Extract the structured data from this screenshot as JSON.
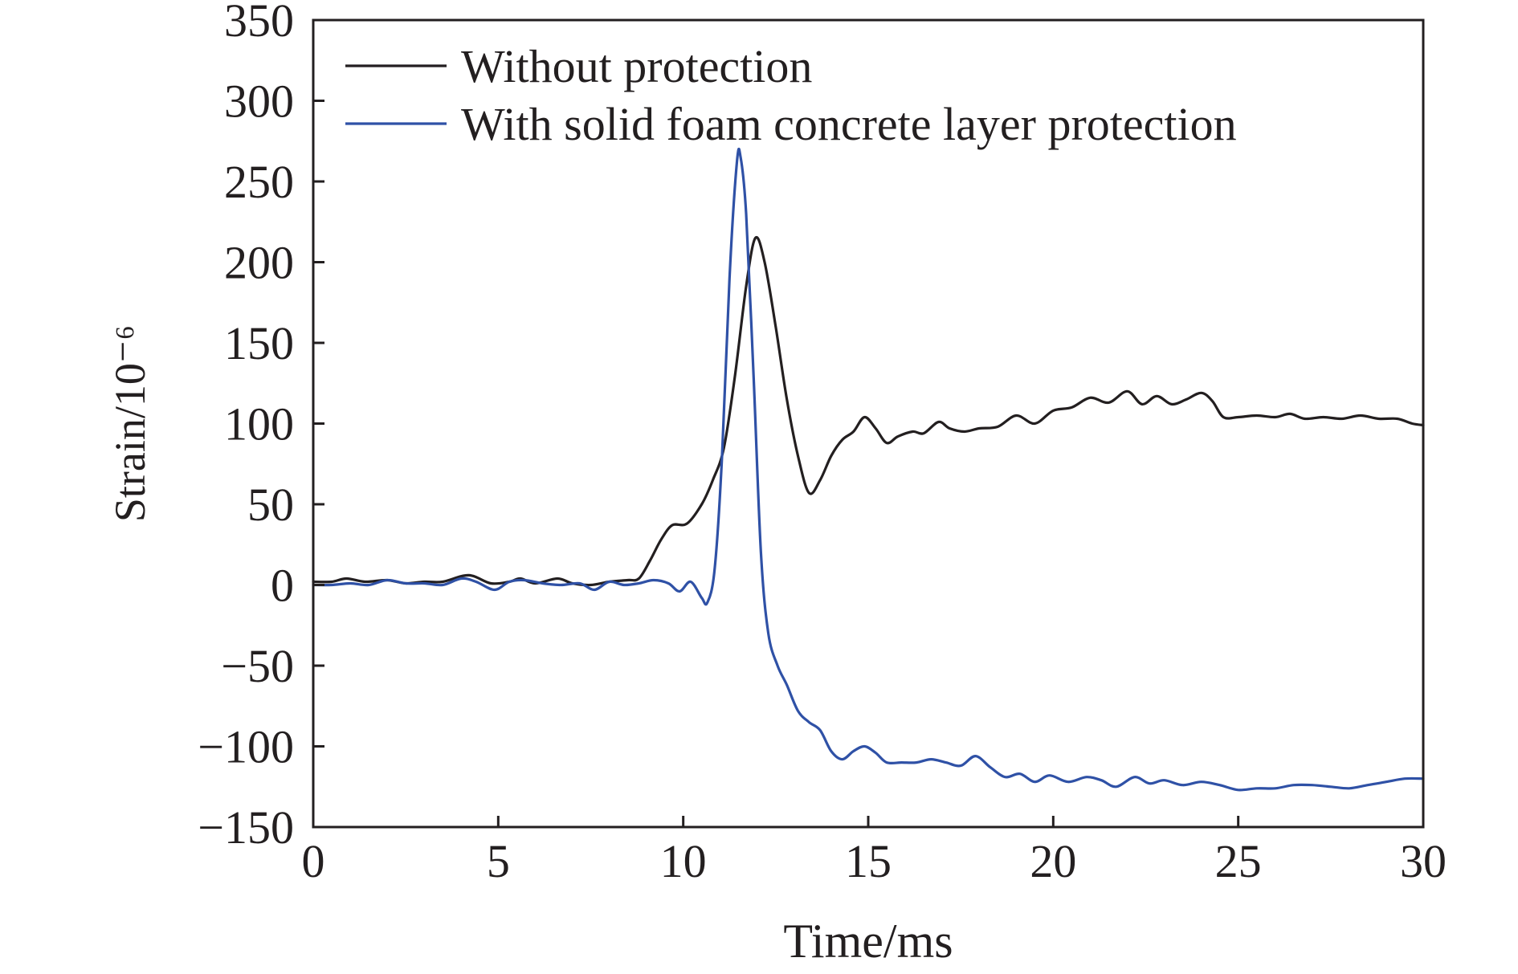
{
  "chart_data": {
    "type": "line",
    "title": "",
    "xlabel": "Time/ms",
    "ylabel": "Strain/10⁻⁶",
    "xlim": [
      0,
      30
    ],
    "ylim": [
      -150,
      350
    ],
    "xticks": [
      0,
      5,
      10,
      15,
      20,
      25,
      30
    ],
    "yticks": [
      -150,
      -100,
      -50,
      0,
      50,
      100,
      150,
      200,
      250,
      300,
      350
    ],
    "xtick_labels": [
      "0",
      "5",
      "10",
      "15",
      "20",
      "25",
      "30"
    ],
    "ytick_labels": [
      "−150",
      "−100",
      "−50",
      "0",
      "50",
      "100",
      "150",
      "200",
      "250",
      "300",
      "350"
    ],
    "grid": false,
    "legend_position": "top-left",
    "series": [
      {
        "name": "Without protection",
        "color": "#231f20",
        "points": [
          [
            0,
            2
          ],
          [
            0.5,
            2
          ],
          [
            0.9,
            4
          ],
          [
            1.4,
            2
          ],
          [
            2.0,
            3
          ],
          [
            2.5,
            1
          ],
          [
            3.0,
            2
          ],
          [
            3.5,
            2
          ],
          [
            4.2,
            6
          ],
          [
            4.8,
            1
          ],
          [
            5.3,
            2
          ],
          [
            5.6,
            4
          ],
          [
            6.0,
            1
          ],
          [
            6.6,
            4
          ],
          [
            7.0,
            1
          ],
          [
            7.5,
            0
          ],
          [
            8.0,
            2
          ],
          [
            8.5,
            3
          ],
          [
            8.8,
            4
          ],
          [
            9.1,
            15
          ],
          [
            9.4,
            28
          ],
          [
            9.7,
            37
          ],
          [
            10.1,
            38
          ],
          [
            10.5,
            50
          ],
          [
            10.8,
            65
          ],
          [
            11.1,
            85
          ],
          [
            11.4,
            130
          ],
          [
            11.7,
            185
          ],
          [
            11.95,
            215
          ],
          [
            12.2,
            200
          ],
          [
            12.5,
            160
          ],
          [
            12.8,
            115
          ],
          [
            13.1,
            80
          ],
          [
            13.4,
            57
          ],
          [
            13.7,
            65
          ],
          [
            14.0,
            80
          ],
          [
            14.3,
            90
          ],
          [
            14.6,
            95
          ],
          [
            14.9,
            104
          ],
          [
            15.2,
            97
          ],
          [
            15.5,
            88
          ],
          [
            15.8,
            92
          ],
          [
            16.2,
            95
          ],
          [
            16.5,
            94
          ],
          [
            16.9,
            101
          ],
          [
            17.2,
            97
          ],
          [
            17.6,
            95
          ],
          [
            18.0,
            97
          ],
          [
            18.5,
            98
          ],
          [
            19.0,
            105
          ],
          [
            19.5,
            100
          ],
          [
            20.0,
            108
          ],
          [
            20.5,
            110
          ],
          [
            21.0,
            116
          ],
          [
            21.5,
            113
          ],
          [
            22.0,
            120
          ],
          [
            22.4,
            112
          ],
          [
            22.8,
            117
          ],
          [
            23.2,
            112
          ],
          [
            23.6,
            115
          ],
          [
            24.0,
            119
          ],
          [
            24.3,
            114
          ],
          [
            24.6,
            104
          ],
          [
            25.0,
            104
          ],
          [
            25.5,
            105
          ],
          [
            26.0,
            104
          ],
          [
            26.4,
            106
          ],
          [
            26.8,
            103
          ],
          [
            27.3,
            104
          ],
          [
            27.8,
            103
          ],
          [
            28.3,
            105
          ],
          [
            28.8,
            103
          ],
          [
            29.3,
            103
          ],
          [
            29.7,
            100
          ],
          [
            30.0,
            99
          ]
        ]
      },
      {
        "name": "With solid foam concrete layer protection",
        "color": "#2f51a6",
        "points": [
          [
            0,
            0
          ],
          [
            0.5,
            0
          ],
          [
            1.0,
            1
          ],
          [
            1.5,
            0
          ],
          [
            2.0,
            3
          ],
          [
            2.5,
            1
          ],
          [
            3.0,
            1
          ],
          [
            3.5,
            0
          ],
          [
            4.0,
            4
          ],
          [
            4.4,
            2
          ],
          [
            4.9,
            -3
          ],
          [
            5.3,
            2
          ],
          [
            5.7,
            3
          ],
          [
            6.2,
            1
          ],
          [
            6.7,
            0
          ],
          [
            7.2,
            1
          ],
          [
            7.6,
            -3
          ],
          [
            8.0,
            2
          ],
          [
            8.4,
            0
          ],
          [
            8.8,
            1
          ],
          [
            9.2,
            3
          ],
          [
            9.6,
            1
          ],
          [
            9.9,
            -4
          ],
          [
            10.2,
            2
          ],
          [
            10.5,
            -8
          ],
          [
            10.65,
            -11
          ],
          [
            10.85,
            10
          ],
          [
            11.05,
            80
          ],
          [
            11.25,
            190
          ],
          [
            11.45,
            262
          ],
          [
            11.55,
            265
          ],
          [
            11.7,
            230
          ],
          [
            11.9,
            130
          ],
          [
            12.1,
            20
          ],
          [
            12.3,
            -30
          ],
          [
            12.55,
            -50
          ],
          [
            12.8,
            -62
          ],
          [
            13.1,
            -78
          ],
          [
            13.4,
            -85
          ],
          [
            13.7,
            -90
          ],
          [
            14.0,
            -103
          ],
          [
            14.3,
            -108
          ],
          [
            14.6,
            -103
          ],
          [
            14.9,
            -100
          ],
          [
            15.2,
            -104
          ],
          [
            15.5,
            -110
          ],
          [
            15.9,
            -110
          ],
          [
            16.3,
            -110
          ],
          [
            16.7,
            -108
          ],
          [
            17.1,
            -110
          ],
          [
            17.5,
            -112
          ],
          [
            17.9,
            -106
          ],
          [
            18.3,
            -113
          ],
          [
            18.7,
            -119
          ],
          [
            19.1,
            -117
          ],
          [
            19.5,
            -122
          ],
          [
            19.9,
            -118
          ],
          [
            20.4,
            -122
          ],
          [
            20.9,
            -119
          ],
          [
            21.3,
            -121
          ],
          [
            21.7,
            -125
          ],
          [
            22.2,
            -119
          ],
          [
            22.6,
            -123
          ],
          [
            23.0,
            -121
          ],
          [
            23.5,
            -124
          ],
          [
            24.0,
            -122
          ],
          [
            24.5,
            -124
          ],
          [
            25.0,
            -127
          ],
          [
            25.5,
            -126
          ],
          [
            26.0,
            -126
          ],
          [
            26.5,
            -124
          ],
          [
            27.0,
            -124
          ],
          [
            27.5,
            -125
          ],
          [
            28.0,
            -126
          ],
          [
            28.5,
            -124
          ],
          [
            29.0,
            -122
          ],
          [
            29.5,
            -120
          ],
          [
            30.0,
            -120
          ]
        ]
      }
    ]
  }
}
